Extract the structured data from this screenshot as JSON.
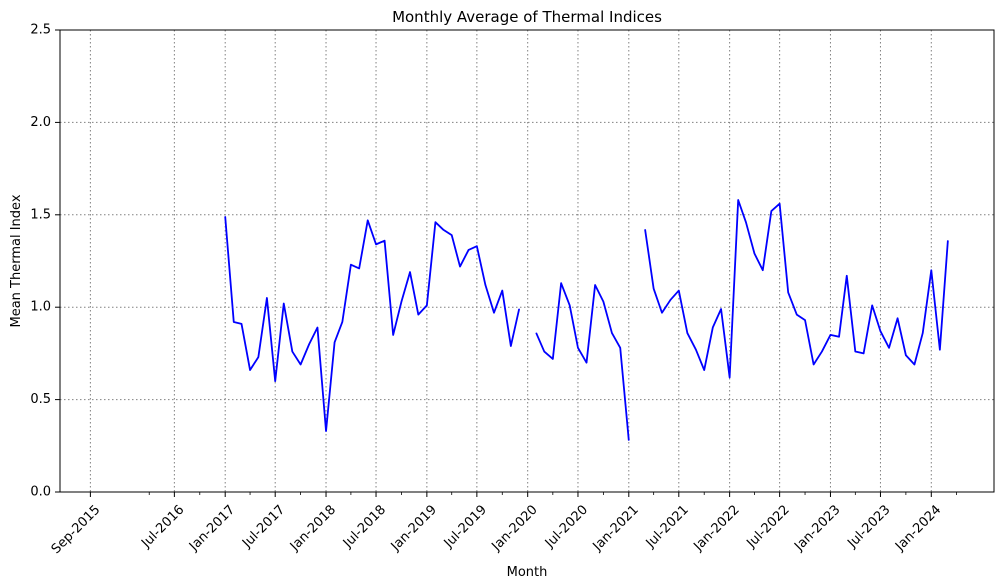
{
  "chart_data": {
    "type": "line",
    "title": "Monthly Average of Thermal Indices",
    "xlabel": "Month",
    "ylabel": "Mean Thermal Index",
    "ylim": [
      0,
      2.5
    ],
    "xlim": [
      "2015-05-14",
      "2024-08-15"
    ],
    "grid": true,
    "grid_style": "dotted",
    "line_color": "#0000ff",
    "x_ticks": [
      {
        "date": "2015-09-01",
        "label": "Sep-2015"
      },
      {
        "date": "2016-07-01",
        "label": "Jul-2016"
      },
      {
        "date": "2017-01-01",
        "label": "Jan-2017"
      },
      {
        "date": "2017-07-01",
        "label": "Jul-2017"
      },
      {
        "date": "2018-01-01",
        "label": "Jan-2018"
      },
      {
        "date": "2018-07-01",
        "label": "Jul-2018"
      },
      {
        "date": "2019-01-01",
        "label": "Jan-2019"
      },
      {
        "date": "2019-07-01",
        "label": "Jul-2019"
      },
      {
        "date": "2020-01-01",
        "label": "Jan-2020"
      },
      {
        "date": "2020-07-01",
        "label": "Jul-2020"
      },
      {
        "date": "2021-01-01",
        "label": "Jan-2021"
      },
      {
        "date": "2021-07-01",
        "label": "Jul-2021"
      },
      {
        "date": "2022-01-01",
        "label": "Jan-2022"
      },
      {
        "date": "2022-07-01",
        "label": "Jul-2022"
      },
      {
        "date": "2023-01-01",
        "label": "Jan-2023"
      },
      {
        "date": "2023-07-01",
        "label": "Jul-2023"
      },
      {
        "date": "2024-01-01",
        "label": "Jan-2024"
      }
    ],
    "y_ticks": [
      {
        "value": 0.0,
        "label": "0.0"
      },
      {
        "value": 0.5,
        "label": "0.5"
      },
      {
        "value": 1.0,
        "label": "1.0"
      },
      {
        "value": 1.5,
        "label": "1.5"
      },
      {
        "value": 2.0,
        "label": "2.0"
      },
      {
        "value": 2.5,
        "label": "2.5"
      }
    ],
    "segments": [
      [
        [
          "2017-01",
          1.49
        ],
        [
          "2017-02",
          0.92
        ],
        [
          "2017-03",
          0.91
        ],
        [
          "2017-04",
          0.66
        ],
        [
          "2017-05",
          0.73
        ],
        [
          "2017-06",
          1.05
        ],
        [
          "2017-07",
          0.6
        ],
        [
          "2017-08",
          1.02
        ],
        [
          "2017-09",
          0.76
        ],
        [
          "2017-10",
          0.69
        ],
        [
          "2017-11",
          0.8
        ],
        [
          "2017-12",
          0.89
        ],
        [
          "2018-01",
          0.33
        ],
        [
          "2018-02",
          0.81
        ],
        [
          "2018-03",
          0.92
        ],
        [
          "2018-04",
          1.23
        ],
        [
          "2018-05",
          1.21
        ],
        [
          "2018-06",
          1.47
        ],
        [
          "2018-07",
          1.34
        ],
        [
          "2018-08",
          1.36
        ],
        [
          "2018-09",
          0.85
        ],
        [
          "2018-10",
          1.03
        ],
        [
          "2018-11",
          1.19
        ],
        [
          "2018-12",
          0.96
        ],
        [
          "2019-01",
          1.01
        ],
        [
          "2019-02",
          1.46
        ],
        [
          "2019-03",
          1.42
        ],
        [
          "2019-04",
          1.39
        ],
        [
          "2019-05",
          1.22
        ],
        [
          "2019-06",
          1.31
        ],
        [
          "2019-07",
          1.33
        ],
        [
          "2019-08",
          1.12
        ],
        [
          "2019-09",
          0.97
        ],
        [
          "2019-10",
          1.09
        ],
        [
          "2019-11",
          0.79
        ],
        [
          "2019-12",
          0.99
        ]
      ],
      [
        [
          "2020-02",
          0.86
        ],
        [
          "2020-03",
          0.76
        ],
        [
          "2020-04",
          0.72
        ],
        [
          "2020-05",
          1.13
        ],
        [
          "2020-06",
          1.01
        ],
        [
          "2020-07",
          0.78
        ],
        [
          "2020-08",
          0.7
        ],
        [
          "2020-09",
          1.12
        ],
        [
          "2020-10",
          1.03
        ],
        [
          "2020-11",
          0.86
        ],
        [
          "2020-12",
          0.78
        ],
        [
          "2021-01",
          0.28
        ]
      ],
      [
        [
          "2021-03",
          1.42
        ],
        [
          "2021-04",
          1.1
        ],
        [
          "2021-05",
          0.97
        ],
        [
          "2021-06",
          1.04
        ],
        [
          "2021-07",
          1.09
        ],
        [
          "2021-08",
          0.86
        ],
        [
          "2021-09",
          0.77
        ],
        [
          "2021-10",
          0.66
        ],
        [
          "2021-11",
          0.89
        ],
        [
          "2021-12",
          0.99
        ],
        [
          "2022-01",
          0.62
        ],
        [
          "2022-02",
          1.58
        ],
        [
          "2022-03",
          1.46
        ],
        [
          "2022-04",
          1.29
        ],
        [
          "2022-05",
          1.2
        ],
        [
          "2022-06",
          1.52
        ],
        [
          "2022-07",
          1.56
        ],
        [
          "2022-08",
          1.08
        ],
        [
          "2022-09",
          0.96
        ],
        [
          "2022-10",
          0.93
        ],
        [
          "2022-11",
          0.69
        ],
        [
          "2022-12",
          0.76
        ],
        [
          "2023-01",
          0.85
        ],
        [
          "2023-02",
          0.84
        ],
        [
          "2023-03",
          1.17
        ],
        [
          "2023-04",
          0.76
        ],
        [
          "2023-05",
          0.75
        ],
        [
          "2023-06",
          1.01
        ],
        [
          "2023-07",
          0.87
        ],
        [
          "2023-08",
          0.78
        ],
        [
          "2023-09",
          0.94
        ],
        [
          "2023-10",
          0.74
        ],
        [
          "2023-11",
          0.69
        ],
        [
          "2023-12",
          0.86
        ],
        [
          "2024-01",
          1.2
        ],
        [
          "2024-02",
          0.77
        ],
        [
          "2024-03",
          1.36
        ]
      ]
    ]
  }
}
